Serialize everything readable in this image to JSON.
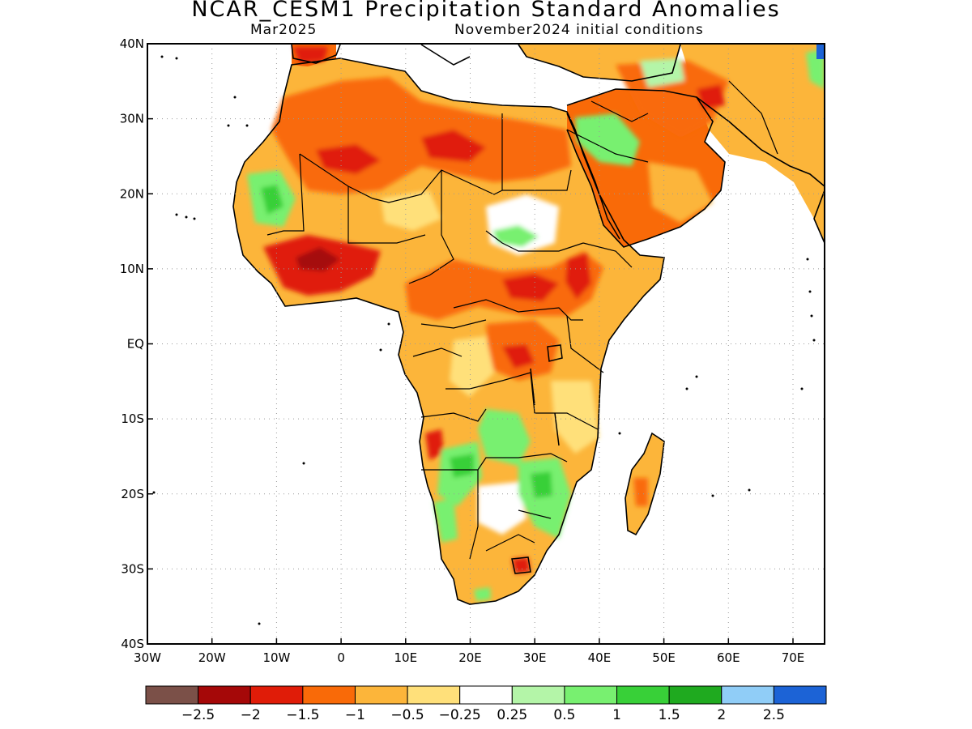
{
  "title": "NCAR_CESM1 Precipitation Standard Anomalies",
  "subtitle_left": "Mar2025",
  "subtitle_right": "November2024 initial conditions",
  "lat_labels": [
    "40N",
    "30N",
    "20N",
    "10N",
    "EQ",
    "10S",
    "20S",
    "30S",
    "40S"
  ],
  "lon_labels": [
    "30W",
    "20W",
    "10W",
    "0",
    "10E",
    "20E",
    "30E",
    "40E",
    "50E",
    "60E",
    "70E"
  ],
  "colorbar": {
    "colors": [
      "#7b5048",
      "#a50808",
      "#e01c08",
      "#f96a08",
      "#fcb53a",
      "#ffe07a",
      "#ffffff",
      "#b4f5a8",
      "#78f070",
      "#38d038",
      "#1faa1f",
      "#90cdf7",
      "#1c63d6"
    ],
    "labels": [
      "−2.5",
      "−2",
      "−1.5",
      "−1",
      "−0.5",
      "−0.25",
      "0.25",
      "0.5",
      "1",
      "1.5",
      "2",
      "2.5"
    ]
  }
}
